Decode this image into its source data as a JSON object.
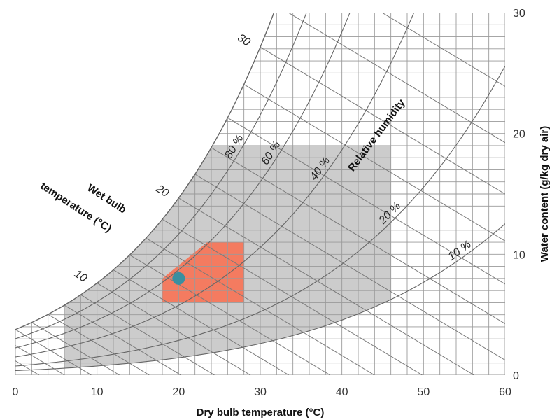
{
  "chart_data": {
    "type": "psychrometric",
    "xlabel": "Dry bulb temperature (°C)",
    "ylabel": "Water content (g/kg dry air)",
    "xlim": [
      0,
      60
    ],
    "ylim": [
      0,
      30
    ],
    "x_ticks": [
      "0",
      "10",
      "20",
      "30",
      "40",
      "50",
      "60"
    ],
    "y_ticks": [
      "0",
      "10",
      "20",
      "30"
    ],
    "relative_humidity": {
      "title": "Relative humidity",
      "curves": [
        {
          "rh": 1.0,
          "label": ""
        },
        {
          "rh": 0.8,
          "label": "80 %"
        },
        {
          "rh": 0.6,
          "label": "60 %"
        },
        {
          "rh": 0.4,
          "label": "40 %"
        },
        {
          "rh": 0.2,
          "label": "20 %"
        },
        {
          "rh": 0.1,
          "label": "10 %"
        }
      ]
    },
    "wet_bulb": {
      "title_line1": "Wet bulb",
      "title_line2": "temperature (°C)",
      "labels": [
        {
          "t": 10,
          "label": "10"
        },
        {
          "t": 20,
          "label": "20"
        },
        {
          "t": 30,
          "label": "30"
        }
      ]
    },
    "regions": [
      {
        "name": "wide-envelope",
        "color": "#cccccc",
        "t_min": 6,
        "t_max": 46,
        "w_min": 0.5,
        "w_max": 19,
        "rh_max": 1.0,
        "rh_min": 0.1
      },
      {
        "name": "comfort-zone",
        "color": "#f47b60",
        "polygon": [
          [
            18,
            6
          ],
          [
            28,
            6
          ],
          [
            28,
            11
          ],
          [
            23.5,
            11
          ],
          [
            18,
            8
          ]
        ]
      }
    ],
    "point": {
      "t": 20,
      "w": 8,
      "color": "#3a8fa0"
    }
  }
}
